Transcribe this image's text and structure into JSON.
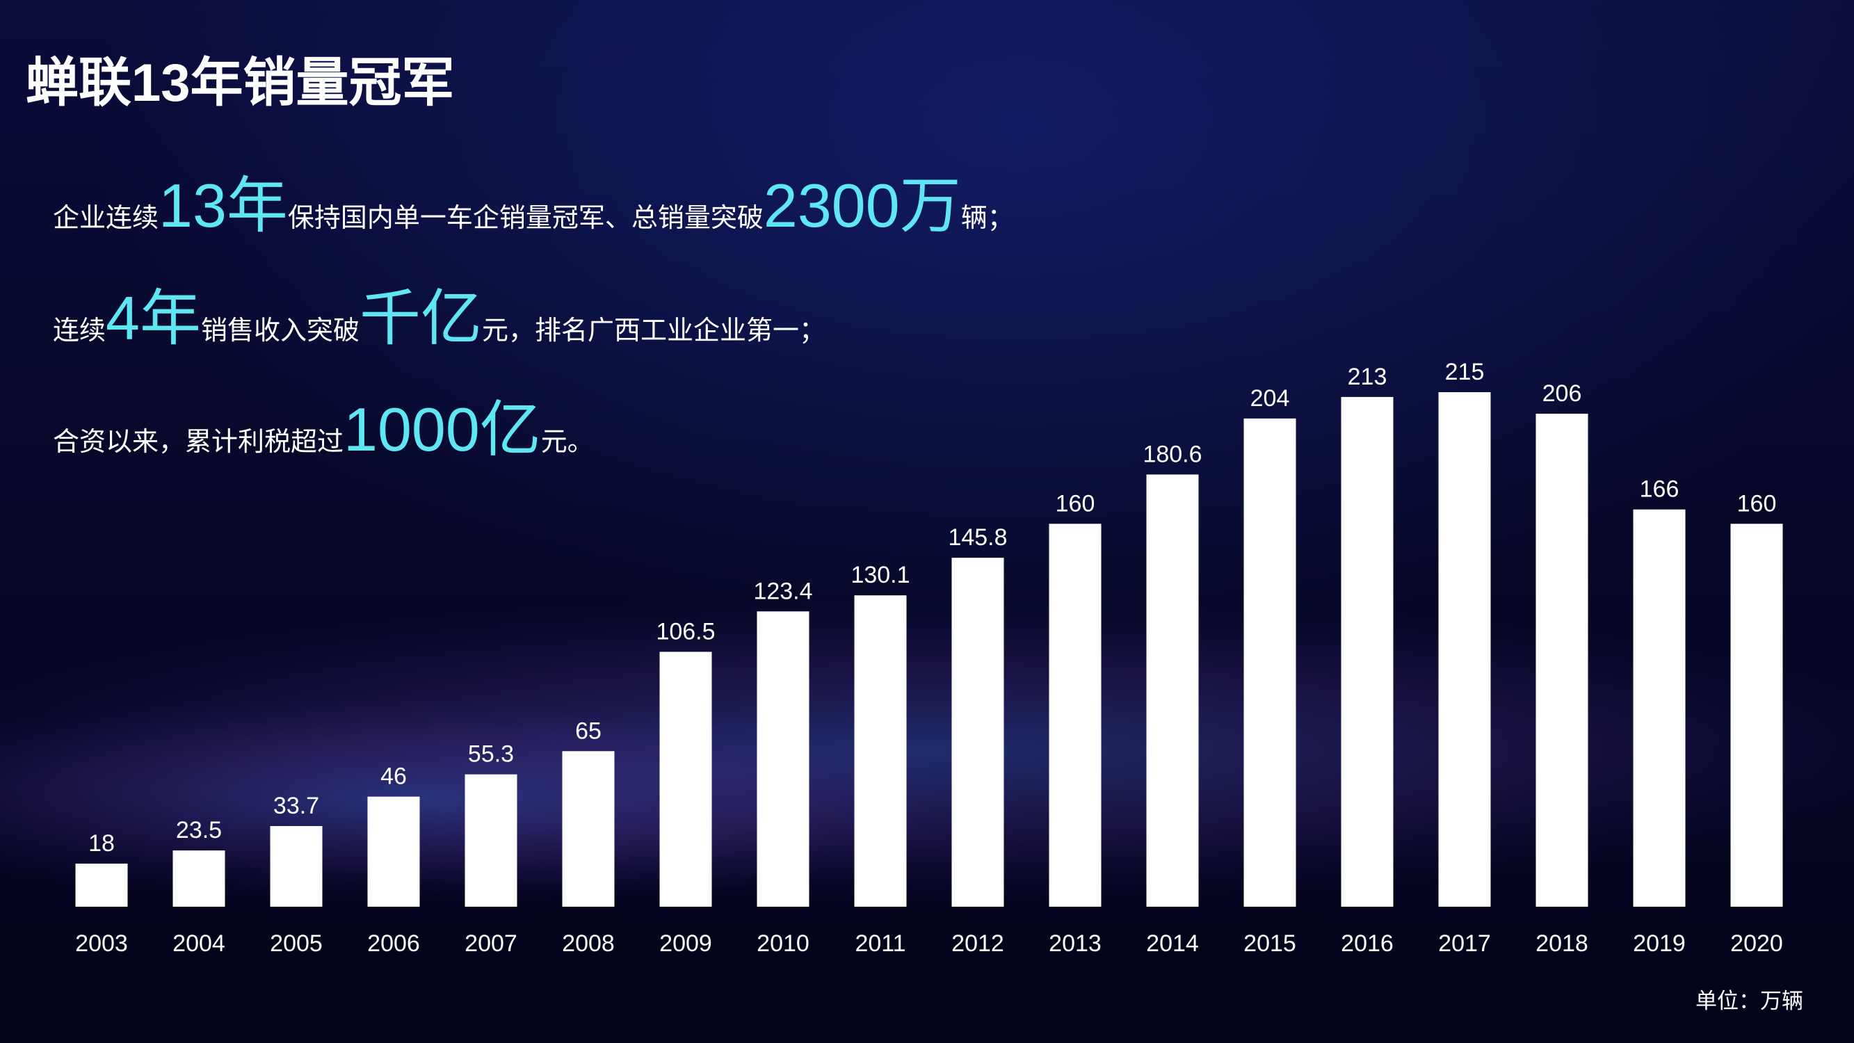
{
  "chart_data": {
    "type": "bar",
    "title": "蝉联13年销量冠军",
    "annotations": [
      [
        "企业连续",
        "13年",
        "保持国内单一车企销量冠军、总销量突破",
        "2300万",
        "辆；"
      ],
      [
        "连续",
        "4年",
        "销售收入突破",
        "千亿",
        "元，排名广西工业企业第一；"
      ],
      [
        "合资以来，累计利税超过",
        "1000亿",
        "元。"
      ]
    ],
    "categories": [
      "2003",
      "2004",
      "2005",
      "2006",
      "2007",
      "2008",
      "2009",
      "2010",
      "2011",
      "2012",
      "2013",
      "2014",
      "2015",
      "2016",
      "2017",
      "2018",
      "2019",
      "2020"
    ],
    "values": [
      18,
      23.5,
      33.7,
      46,
      55.3,
      65,
      106.5,
      123.4,
      130.1,
      145.8,
      160,
      180.6,
      204,
      213,
      215,
      206,
      166,
      160
    ],
    "color": "#ffffff",
    "unit_note": "单位：万辆"
  }
}
